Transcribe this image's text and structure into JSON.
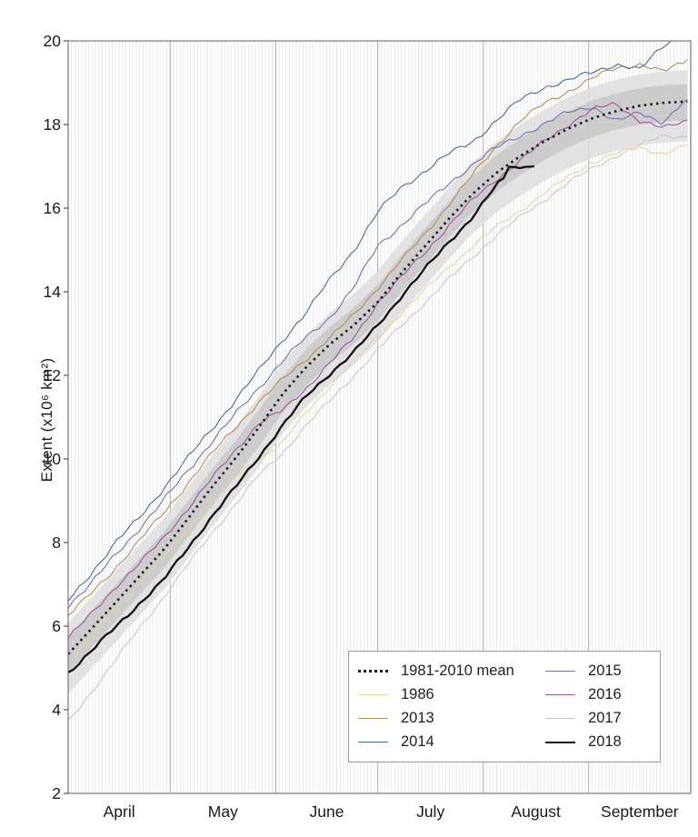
{
  "chart_data": {
    "type": "line",
    "title": "",
    "xlabel": "",
    "ylabel": "Extent (x10⁶ km²)",
    "ylim": [
      2,
      20
    ],
    "yticks": [
      2,
      4,
      6,
      8,
      10,
      12,
      14,
      16,
      18,
      20
    ],
    "x_axis": "days from April 1 (daily gridlines; darker line at each month start)",
    "xlim_days": [
      0,
      183
    ],
    "months": [
      {
        "label": "April",
        "start_day": 0,
        "mid_day": 15
      },
      {
        "label": "May",
        "start_day": 30,
        "mid_day": 45.5
      },
      {
        "label": "June",
        "start_day": 61,
        "mid_day": 76
      },
      {
        "label": "July",
        "start_day": 91,
        "mid_day": 106.5
      },
      {
        "label": "August",
        "start_day": 122,
        "mid_day": 137.5
      },
      {
        "label": "September",
        "start_day": 153,
        "mid_day": 168
      }
    ],
    "grid": {
      "vertical_daily": true,
      "horizontal": false,
      "daily_color": "#e4e4e4",
      "month_color": "#b0b0b0"
    },
    "legend_position": "lower-center-right, two columns, white box",
    "bands": {
      "description": "gray climatology spread bands around 1981-2010 mean",
      "outer_offset_up": 0.75,
      "outer_offset_down": 0.95,
      "inner_offset_up": 0.42,
      "inner_offset_down": 0.45,
      "outer_color": "#dcdcdc",
      "inner_color": "#c5c5c5",
      "opacity": 0.8
    },
    "sample_days": [
      0,
      7,
      14,
      21,
      28,
      35,
      42,
      49,
      56,
      63,
      70,
      77,
      84,
      91,
      98,
      105,
      112,
      119,
      126,
      133,
      140,
      147,
      154,
      161,
      168,
      175,
      182
    ],
    "series": [
      {
        "name": "1981-2010 mean",
        "color": "#1a1a1a",
        "width": 2.6,
        "dash": "2.5 4.2",
        "wiggle": 0,
        "values": [
          5.33,
          5.95,
          6.57,
          7.2,
          7.82,
          8.55,
          9.3,
          10.0,
          10.75,
          11.55,
          12.2,
          12.75,
          13.2,
          13.75,
          14.45,
          15.1,
          15.75,
          16.35,
          16.85,
          17.25,
          17.6,
          17.9,
          18.15,
          18.32,
          18.45,
          18.52,
          18.55
        ]
      },
      {
        "name": "1986",
        "color": "#e9d2a0",
        "width": 1.1,
        "dash": "",
        "wiggle": 0.05,
        "values": [
          5.2,
          5.75,
          6.4,
          7.05,
          7.65,
          8.3,
          8.95,
          9.55,
          10.0,
          10.4,
          11.1,
          11.75,
          12.35,
          12.9,
          13.5,
          14.05,
          14.6,
          15.1,
          15.55,
          15.95,
          16.35,
          16.75,
          17.1,
          17.3,
          17.45,
          17.3,
          17.5
        ]
      },
      {
        "name": "2013",
        "color": "#b98b57",
        "width": 1.1,
        "dash": "",
        "wiggle": 0.055,
        "values": [
          6.25,
          6.8,
          7.4,
          8.05,
          8.7,
          9.4,
          10.1,
          10.75,
          11.35,
          11.9,
          12.4,
          12.9,
          13.45,
          14.1,
          14.75,
          15.4,
          16.1,
          16.8,
          17.5,
          18.1,
          18.5,
          18.8,
          19.1,
          19.35,
          19.45,
          19.25,
          19.55
        ]
      },
      {
        "name": "2014",
        "color": "#4a6a96",
        "width": 1.1,
        "dash": "",
        "wiggle": 0.06,
        "values": [
          6.6,
          7.3,
          8.0,
          8.6,
          9.3,
          10.0,
          10.7,
          11.4,
          12.1,
          12.85,
          13.5,
          14.3,
          15.0,
          15.9,
          16.5,
          16.9,
          17.3,
          17.6,
          18.1,
          18.6,
          18.9,
          19.05,
          19.25,
          19.45,
          19.3,
          19.9,
          20.25
        ]
      },
      {
        "name": "2015",
        "color": "#6e73b4",
        "width": 1.1,
        "dash": "",
        "wiggle": 0.06,
        "values": [
          6.5,
          7.05,
          7.7,
          8.35,
          9.0,
          9.7,
          10.4,
          11.05,
          11.7,
          12.35,
          12.9,
          13.4,
          14.1,
          15.1,
          15.6,
          16.1,
          16.6,
          17.05,
          17.45,
          17.75,
          18.0,
          18.3,
          18.45,
          18.05,
          18.3,
          18.05,
          18.6
        ]
      },
      {
        "name": "2016",
        "color": "#a1539e",
        "width": 1.1,
        "dash": "",
        "wiggle": 0.055,
        "values": [
          5.72,
          6.3,
          6.95,
          7.5,
          8.1,
          8.8,
          9.5,
          10.2,
          10.85,
          11.15,
          11.7,
          12.3,
          12.9,
          13.75,
          14.35,
          14.95,
          15.6,
          16.2,
          16.7,
          17.15,
          17.6,
          18.0,
          18.35,
          18.5,
          18.1,
          17.9,
          18.1
        ]
      },
      {
        "name": "2017",
        "color": "#c8c8c8",
        "width": 1.1,
        "dash": "",
        "wiggle": 0.05,
        "values": [
          3.7,
          4.45,
          5.2,
          5.95,
          6.7,
          7.45,
          8.2,
          8.9,
          9.6,
          10.15,
          10.8,
          11.4,
          12.0,
          12.6,
          13.2,
          13.75,
          14.3,
          14.85,
          15.35,
          15.8,
          16.2,
          16.6,
          16.95,
          17.25,
          17.5,
          17.75,
          17.7
        ]
      },
      {
        "name": "2018",
        "color": "#111111",
        "width": 2.3,
        "dash": "",
        "wiggle": 0.045,
        "days": [
          0,
          7,
          14,
          21,
          28,
          35,
          42,
          49,
          56,
          63,
          70,
          77,
          84,
          91,
          98,
          105,
          112,
          119,
          126,
          128,
          130,
          132,
          134,
          137
        ],
        "values": [
          4.89,
          5.42,
          5.98,
          6.55,
          7.1,
          7.85,
          8.6,
          9.3,
          10.05,
          10.8,
          11.5,
          12.05,
          12.55,
          13.2,
          13.9,
          14.55,
          15.2,
          15.8,
          16.55,
          16.7,
          17.1,
          16.9,
          17.05,
          17.0
        ]
      }
    ]
  },
  "legend": {
    "items": [
      {
        "label": "1981-2010 mean",
        "series": "1981-2010 mean"
      },
      {
        "label": "1986",
        "series": "1986"
      },
      {
        "label": "2013",
        "series": "2013"
      },
      {
        "label": "2014",
        "series": "2014"
      },
      {
        "label": "2015",
        "series": "2015"
      },
      {
        "label": "2016",
        "series": "2016"
      },
      {
        "label": "2017",
        "series": "2017"
      },
      {
        "label": "2018",
        "series": "2018"
      }
    ]
  },
  "axes_text": {
    "y_title": "Extent (x10⁶ km²)"
  }
}
